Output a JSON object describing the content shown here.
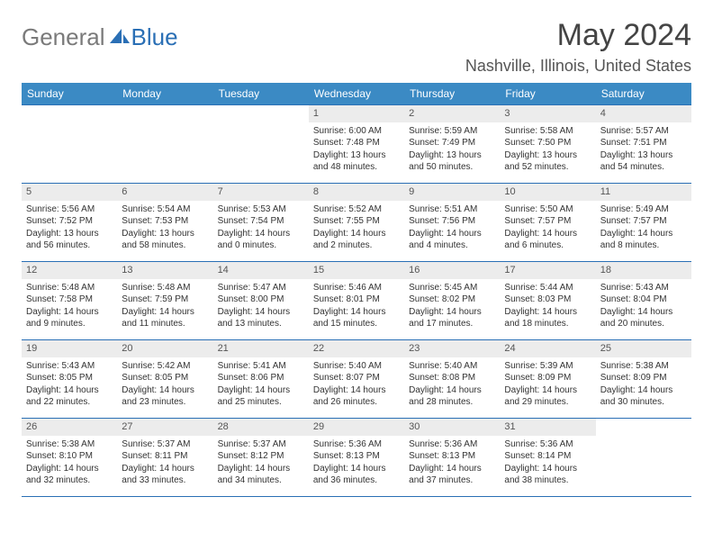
{
  "brand": {
    "part1": "General",
    "part2": "Blue"
  },
  "title": "May 2024",
  "location": "Nashville, Illinois, United States",
  "colors": {
    "header_bg": "#3b8ac4",
    "header_text": "#ffffff",
    "rule": "#2a6fb5",
    "daynum_bg": "#ececec",
    "brand_gray": "#7a7a7a",
    "brand_blue": "#2a6fb5"
  },
  "day_names": [
    "Sunday",
    "Monday",
    "Tuesday",
    "Wednesday",
    "Thursday",
    "Friday",
    "Saturday"
  ],
  "weeks": [
    [
      null,
      null,
      null,
      {
        "n": "1",
        "sr": "Sunrise: 6:00 AM",
        "ss": "Sunset: 7:48 PM",
        "d1": "Daylight: 13 hours",
        "d2": "and 48 minutes."
      },
      {
        "n": "2",
        "sr": "Sunrise: 5:59 AM",
        "ss": "Sunset: 7:49 PM",
        "d1": "Daylight: 13 hours",
        "d2": "and 50 minutes."
      },
      {
        "n": "3",
        "sr": "Sunrise: 5:58 AM",
        "ss": "Sunset: 7:50 PM",
        "d1": "Daylight: 13 hours",
        "d2": "and 52 minutes."
      },
      {
        "n": "4",
        "sr": "Sunrise: 5:57 AM",
        "ss": "Sunset: 7:51 PM",
        "d1": "Daylight: 13 hours",
        "d2": "and 54 minutes."
      }
    ],
    [
      {
        "n": "5",
        "sr": "Sunrise: 5:56 AM",
        "ss": "Sunset: 7:52 PM",
        "d1": "Daylight: 13 hours",
        "d2": "and 56 minutes."
      },
      {
        "n": "6",
        "sr": "Sunrise: 5:54 AM",
        "ss": "Sunset: 7:53 PM",
        "d1": "Daylight: 13 hours",
        "d2": "and 58 minutes."
      },
      {
        "n": "7",
        "sr": "Sunrise: 5:53 AM",
        "ss": "Sunset: 7:54 PM",
        "d1": "Daylight: 14 hours",
        "d2": "and 0 minutes."
      },
      {
        "n": "8",
        "sr": "Sunrise: 5:52 AM",
        "ss": "Sunset: 7:55 PM",
        "d1": "Daylight: 14 hours",
        "d2": "and 2 minutes."
      },
      {
        "n": "9",
        "sr": "Sunrise: 5:51 AM",
        "ss": "Sunset: 7:56 PM",
        "d1": "Daylight: 14 hours",
        "d2": "and 4 minutes."
      },
      {
        "n": "10",
        "sr": "Sunrise: 5:50 AM",
        "ss": "Sunset: 7:57 PM",
        "d1": "Daylight: 14 hours",
        "d2": "and 6 minutes."
      },
      {
        "n": "11",
        "sr": "Sunrise: 5:49 AM",
        "ss": "Sunset: 7:57 PM",
        "d1": "Daylight: 14 hours",
        "d2": "and 8 minutes."
      }
    ],
    [
      {
        "n": "12",
        "sr": "Sunrise: 5:48 AM",
        "ss": "Sunset: 7:58 PM",
        "d1": "Daylight: 14 hours",
        "d2": "and 9 minutes."
      },
      {
        "n": "13",
        "sr": "Sunrise: 5:48 AM",
        "ss": "Sunset: 7:59 PM",
        "d1": "Daylight: 14 hours",
        "d2": "and 11 minutes."
      },
      {
        "n": "14",
        "sr": "Sunrise: 5:47 AM",
        "ss": "Sunset: 8:00 PM",
        "d1": "Daylight: 14 hours",
        "d2": "and 13 minutes."
      },
      {
        "n": "15",
        "sr": "Sunrise: 5:46 AM",
        "ss": "Sunset: 8:01 PM",
        "d1": "Daylight: 14 hours",
        "d2": "and 15 minutes."
      },
      {
        "n": "16",
        "sr": "Sunrise: 5:45 AM",
        "ss": "Sunset: 8:02 PM",
        "d1": "Daylight: 14 hours",
        "d2": "and 17 minutes."
      },
      {
        "n": "17",
        "sr": "Sunrise: 5:44 AM",
        "ss": "Sunset: 8:03 PM",
        "d1": "Daylight: 14 hours",
        "d2": "and 18 minutes."
      },
      {
        "n": "18",
        "sr": "Sunrise: 5:43 AM",
        "ss": "Sunset: 8:04 PM",
        "d1": "Daylight: 14 hours",
        "d2": "and 20 minutes."
      }
    ],
    [
      {
        "n": "19",
        "sr": "Sunrise: 5:43 AM",
        "ss": "Sunset: 8:05 PM",
        "d1": "Daylight: 14 hours",
        "d2": "and 22 minutes."
      },
      {
        "n": "20",
        "sr": "Sunrise: 5:42 AM",
        "ss": "Sunset: 8:05 PM",
        "d1": "Daylight: 14 hours",
        "d2": "and 23 minutes."
      },
      {
        "n": "21",
        "sr": "Sunrise: 5:41 AM",
        "ss": "Sunset: 8:06 PM",
        "d1": "Daylight: 14 hours",
        "d2": "and 25 minutes."
      },
      {
        "n": "22",
        "sr": "Sunrise: 5:40 AM",
        "ss": "Sunset: 8:07 PM",
        "d1": "Daylight: 14 hours",
        "d2": "and 26 minutes."
      },
      {
        "n": "23",
        "sr": "Sunrise: 5:40 AM",
        "ss": "Sunset: 8:08 PM",
        "d1": "Daylight: 14 hours",
        "d2": "and 28 minutes."
      },
      {
        "n": "24",
        "sr": "Sunrise: 5:39 AM",
        "ss": "Sunset: 8:09 PM",
        "d1": "Daylight: 14 hours",
        "d2": "and 29 minutes."
      },
      {
        "n": "25",
        "sr": "Sunrise: 5:38 AM",
        "ss": "Sunset: 8:09 PM",
        "d1": "Daylight: 14 hours",
        "d2": "and 30 minutes."
      }
    ],
    [
      {
        "n": "26",
        "sr": "Sunrise: 5:38 AM",
        "ss": "Sunset: 8:10 PM",
        "d1": "Daylight: 14 hours",
        "d2": "and 32 minutes."
      },
      {
        "n": "27",
        "sr": "Sunrise: 5:37 AM",
        "ss": "Sunset: 8:11 PM",
        "d1": "Daylight: 14 hours",
        "d2": "and 33 minutes."
      },
      {
        "n": "28",
        "sr": "Sunrise: 5:37 AM",
        "ss": "Sunset: 8:12 PM",
        "d1": "Daylight: 14 hours",
        "d2": "and 34 minutes."
      },
      {
        "n": "29",
        "sr": "Sunrise: 5:36 AM",
        "ss": "Sunset: 8:13 PM",
        "d1": "Daylight: 14 hours",
        "d2": "and 36 minutes."
      },
      {
        "n": "30",
        "sr": "Sunrise: 5:36 AM",
        "ss": "Sunset: 8:13 PM",
        "d1": "Daylight: 14 hours",
        "d2": "and 37 minutes."
      },
      {
        "n": "31",
        "sr": "Sunrise: 5:36 AM",
        "ss": "Sunset: 8:14 PM",
        "d1": "Daylight: 14 hours",
        "d2": "and 38 minutes."
      },
      null
    ]
  ]
}
